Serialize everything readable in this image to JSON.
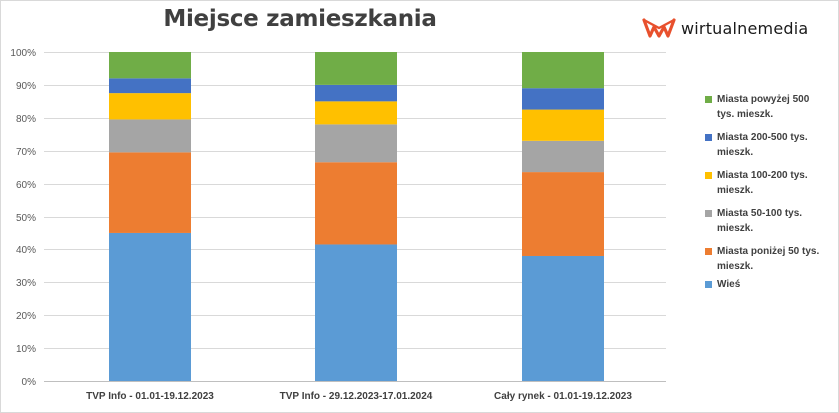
{
  "brand": {
    "logo_text": "wirtualnemedia",
    "logo_color": "#e8502d"
  },
  "chart_data": {
    "type": "bar",
    "stacked": true,
    "title": "Miejsce zamieszkania",
    "xlabel": "",
    "ylabel": "",
    "ylim": [
      0,
      100
    ],
    "y_ticks": [
      "0%",
      "10%",
      "20%",
      "30%",
      "40%",
      "50%",
      "60%",
      "70%",
      "80%",
      "90%",
      "100%"
    ],
    "grid": true,
    "legend_position": "right",
    "categories": [
      "TVP Info - 01.01-19.12.2023",
      "TVP Info - 29.12.2023-17.01.2024",
      "Cały rynek - 01.01-19.12.2023"
    ],
    "series": [
      {
        "name": "Wieś",
        "color": "#5b9bd5",
        "values": [
          45,
          41.5,
          38
        ]
      },
      {
        "name": "Miasta poniżej 50 tys. mieszk.",
        "color": "#ed7d31",
        "values": [
          24.5,
          25,
          25.5
        ]
      },
      {
        "name": "Miasta 50-100 tys. mieszk.",
        "color": "#a5a5a5",
        "values": [
          10,
          11.5,
          9.5
        ]
      },
      {
        "name": "Miasta 100-200 tys. mieszk.",
        "color": "#ffc000",
        "values": [
          8,
          7,
          9.5
        ]
      },
      {
        "name": "Miasta 200-500 tys. mieszk.",
        "color": "#4472c4",
        "values": [
          4.5,
          5,
          6.5
        ]
      },
      {
        "name": "Miasta powyżej 500 tys. mieszk.",
        "color": "#70ad47",
        "values": [
          8,
          10,
          11
        ]
      }
    ]
  }
}
